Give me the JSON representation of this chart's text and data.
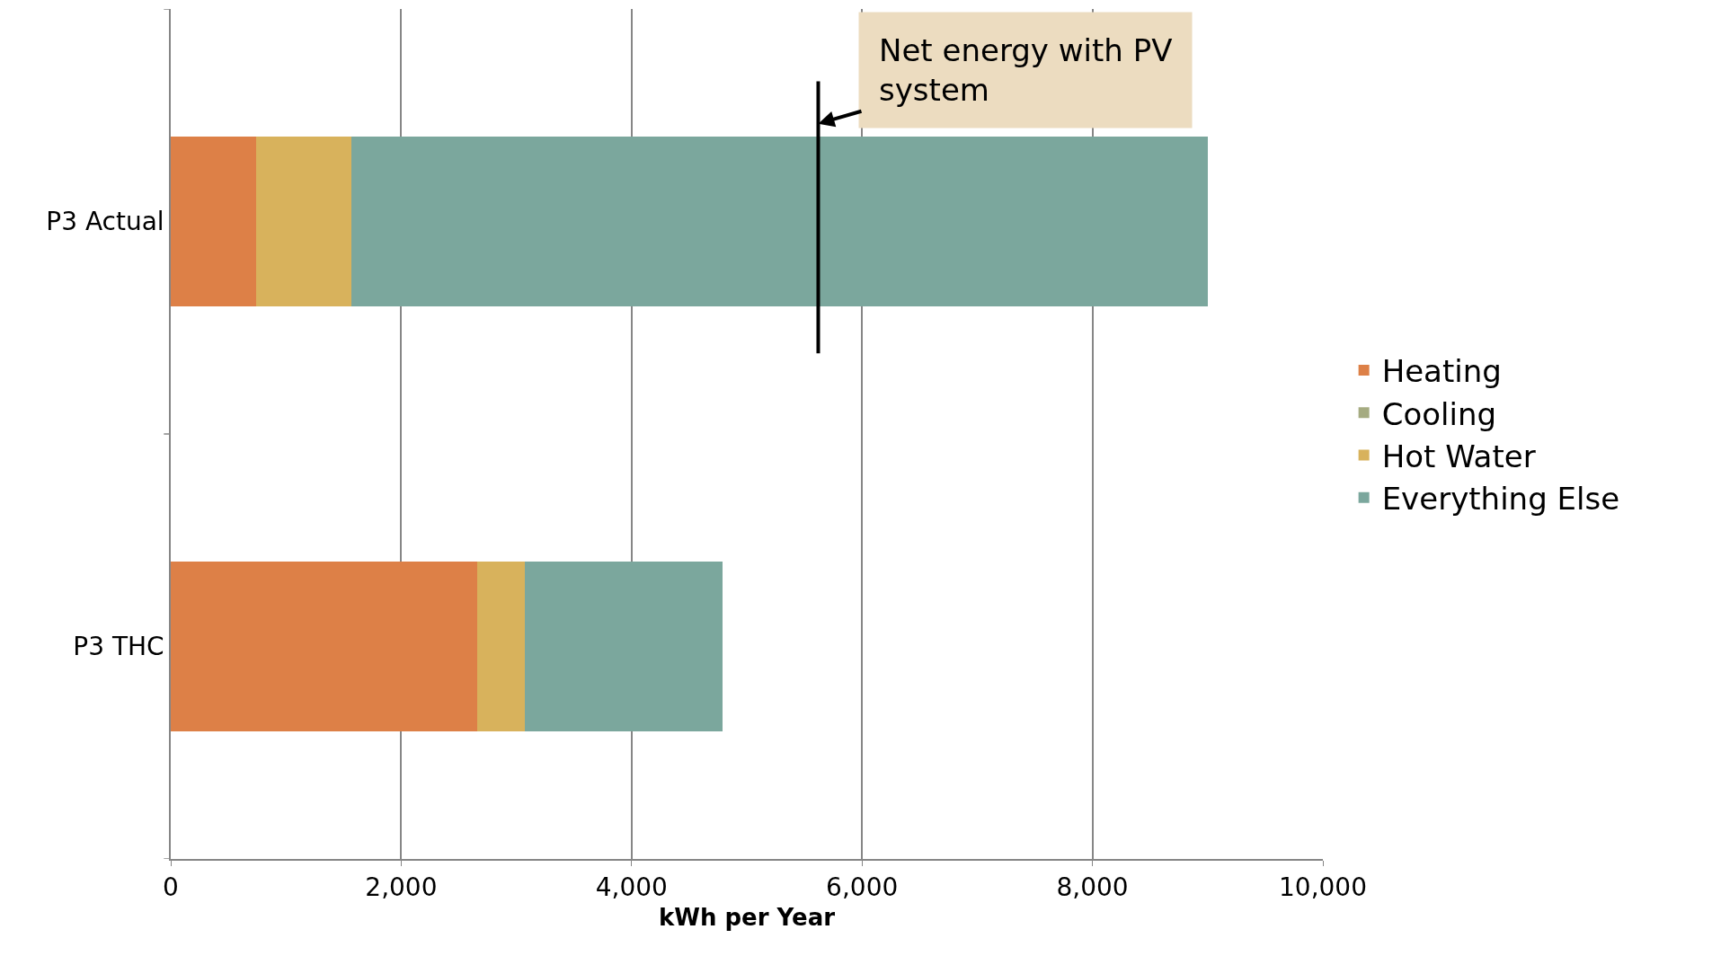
{
  "chart_data": {
    "type": "bar",
    "orientation": "horizontal",
    "stacked": true,
    "xlabel": "kWh per Year",
    "categories": [
      "P3 Actual",
      "P3 THC"
    ],
    "series": [
      {
        "name": "Heating",
        "color": "#dd8047",
        "values": [
          740,
          2660
        ]
      },
      {
        "name": "Cooling",
        "color": "#a5ab81",
        "values": [
          0,
          0
        ]
      },
      {
        "name": "Hot Water",
        "color": "#d8b25c",
        "values": [
          830,
          410
        ]
      },
      {
        "name": "Everything Else",
        "color": "#7ba79d",
        "values": [
          7430,
          1720
        ]
      }
    ],
    "xlim": [
      0,
      10000
    ],
    "xticks": [
      {
        "value": 0,
        "label": "0"
      },
      {
        "value": 2000,
        "label": "2,000"
      },
      {
        "value": 4000,
        "label": "4,000"
      },
      {
        "value": 6000,
        "label": "6,000"
      },
      {
        "value": 8000,
        "label": "8,000"
      },
      {
        "value": 10000,
        "label": "10,000"
      }
    ],
    "grid": "x",
    "legend": "right",
    "ref_lines": [
      {
        "axis": "x",
        "value": 5620,
        "label": "Net energy with PV system",
        "color": "#000000"
      }
    ]
  }
}
